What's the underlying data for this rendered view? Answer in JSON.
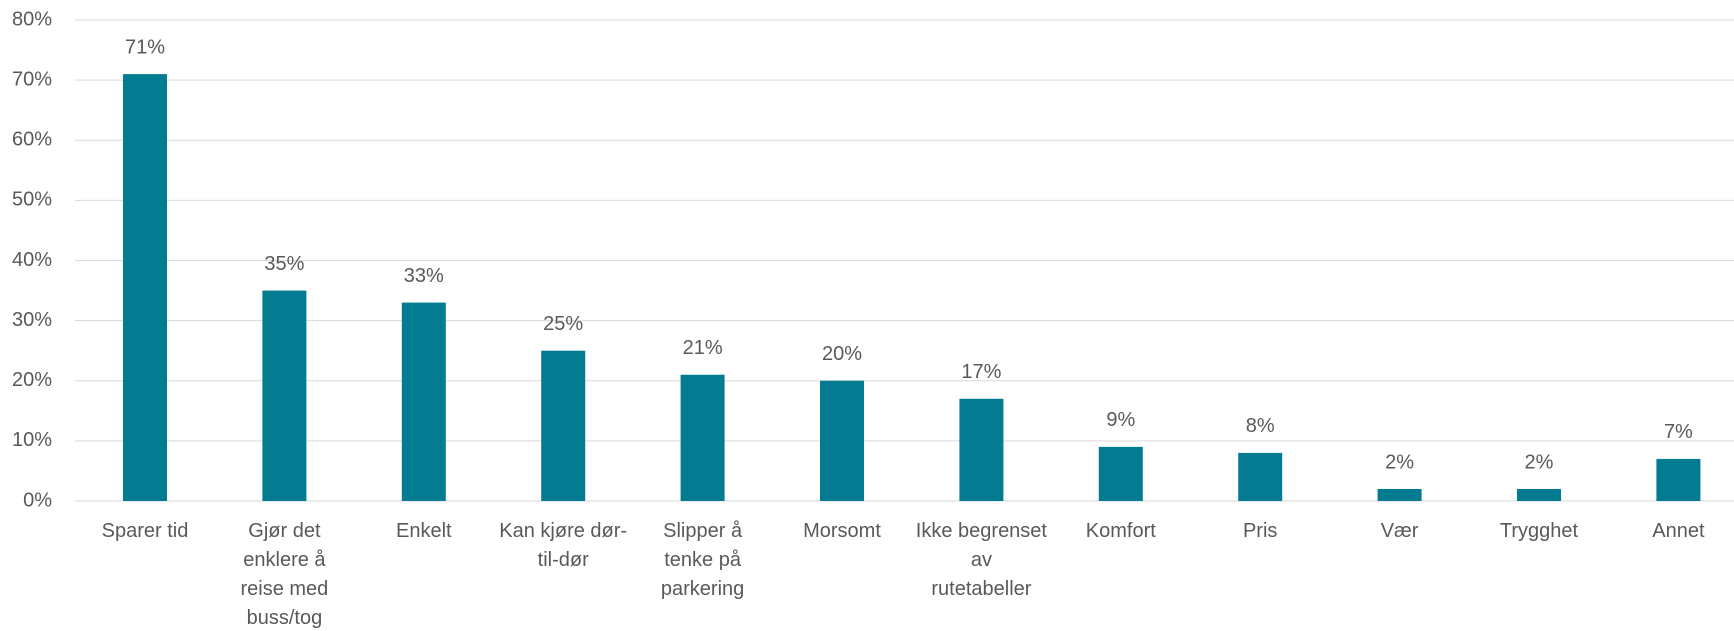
{
  "chart_data": {
    "type": "bar",
    "categories": [
      "Sparer tid",
      "Gjør det enklere å reise med buss/tog",
      "Enkelt",
      "Kan kjøre dør-til-dør",
      "Slipper å tenke på parkering",
      "Morsomt",
      "Ikke begrenset av rutetabeller",
      "Komfort",
      "Pris",
      "Vær",
      "Trygghet",
      "Annet"
    ],
    "values": [
      71,
      35,
      33,
      25,
      21,
      20,
      17,
      9,
      8,
      2,
      2,
      7
    ],
    "value_labels": [
      "71%",
      "35%",
      "33%",
      "25%",
      "21%",
      "20%",
      "17%",
      "9%",
      "8%",
      "2%",
      "2%",
      "7%"
    ],
    "color": "#037c91",
    "ylim": [
      0,
      80
    ],
    "yticks": [
      {
        "value": 0,
        "label": "0%"
      },
      {
        "value": 10,
        "label": "10%"
      },
      {
        "value": 20,
        "label": "20%"
      },
      {
        "value": 30,
        "label": "30%"
      },
      {
        "value": 40,
        "label": "40%"
      },
      {
        "value": 50,
        "label": "50%"
      },
      {
        "value": 60,
        "label": "60%"
      },
      {
        "value": 70,
        "label": "70%"
      },
      {
        "value": 80,
        "label": "80%"
      }
    ],
    "grid": true
  }
}
